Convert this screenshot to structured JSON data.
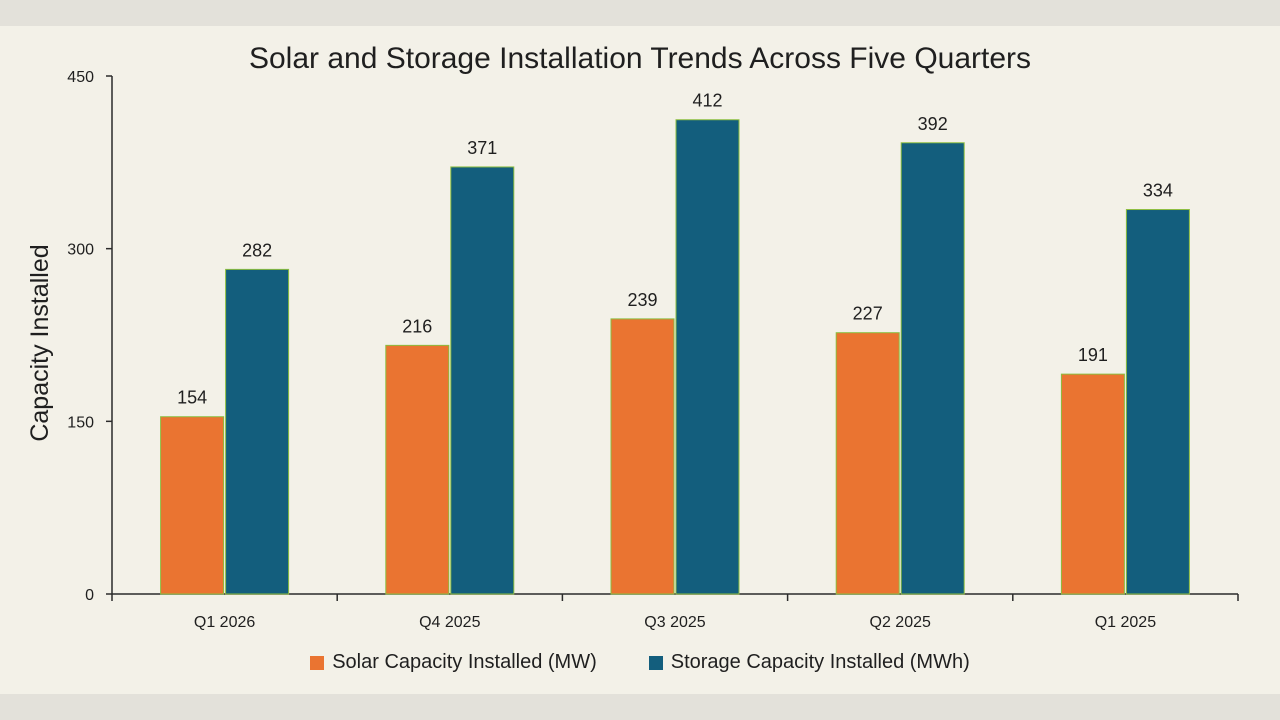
{
  "chart_data": {
    "type": "bar",
    "title": "Solar and Storage Installation Trends Across Five Quarters",
    "ylabel": "Capacity Installed",
    "xlabel": "",
    "ylim": [
      0,
      450
    ],
    "yticks": [
      0,
      150,
      300,
      450
    ],
    "categories": [
      "Q1 2026",
      "Q4 2025",
      "Q3 2025",
      "Q2 2025",
      "Q1 2025"
    ],
    "series": [
      {
        "name": "Solar Capacity Installed (MW)",
        "color": "#ea7431",
        "values": [
          154,
          216,
          239,
          227,
          191
        ]
      },
      {
        "name": "Storage Capacity Installed (MWh)",
        "color": "#135e7d",
        "values": [
          282,
          371,
          412,
          392,
          334
        ]
      }
    ],
    "legend_position": "bottom",
    "grid": false,
    "data_labels": true
  }
}
